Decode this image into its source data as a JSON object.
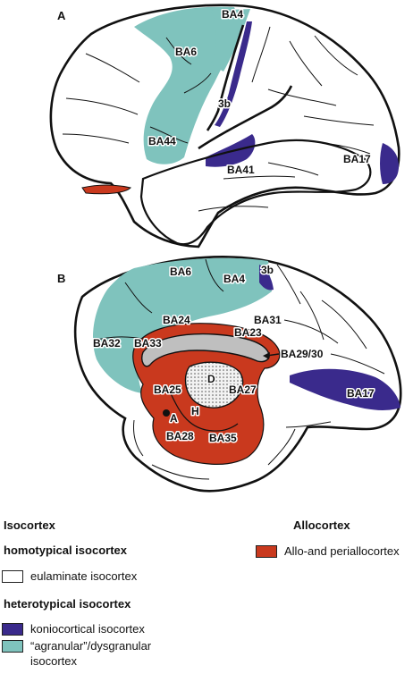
{
  "colors": {
    "eulaminate": "#ffffff",
    "koniocortical": "#3a2a8c",
    "agranular": "#7fc3bd",
    "allocortex": "#c9391e",
    "ventricle_gray": "#bfbfbf",
    "outline": "#111111"
  },
  "panel_a": {
    "letter": "A",
    "labels": {
      "ba4": "BA4",
      "ba6": "BA6",
      "s3b": "3b",
      "ba44": "BA44",
      "ba41": "BA41",
      "ba17": "BA17"
    }
  },
  "panel_b": {
    "letter": "B",
    "labels": {
      "ba6": "BA6",
      "ba4": "BA4",
      "s3b": "3b",
      "ba24": "BA24",
      "ba31": "BA31",
      "ba32": "BA32",
      "ba33": "BA33",
      "ba23": "BA23",
      "ba2930": "BA29/30",
      "d": "D",
      "ba25": "BA25",
      "ba27": "BA27",
      "ba17": "BA17",
      "a": "A",
      "h": "H",
      "ba28": "BA28",
      "ba35": "BA35"
    }
  },
  "legend": {
    "isocortex_heading": "Isocortex",
    "homotypical_heading": "homotypical isocortex",
    "eulaminate_label": "eulaminate isocortex",
    "heterotypical_heading": "heterotypical isocortex",
    "koniocortical_label": "koniocortical isocortex",
    "agranular_label_line1": "“agranular”/dysgranular",
    "agranular_label_line2": "isocortex",
    "allocortex_heading": "Allocortex",
    "allo_label": "Allo-and periallocortex"
  }
}
